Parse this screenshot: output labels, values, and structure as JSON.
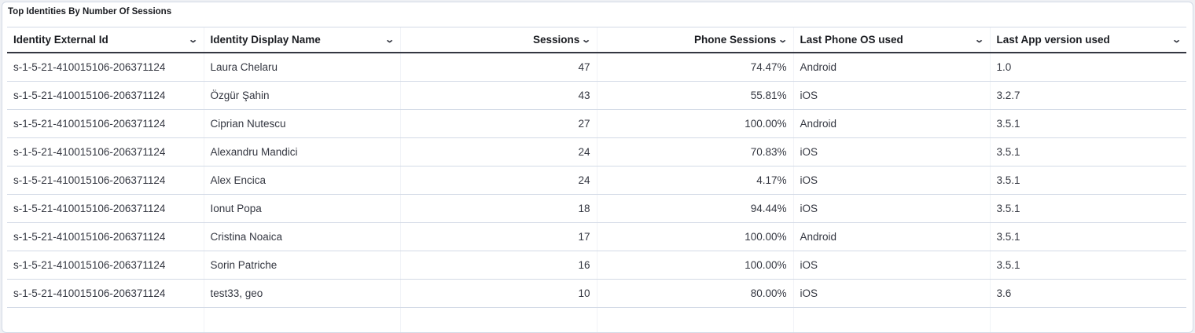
{
  "title": "Top Identities By Number Of Sessions",
  "columns": [
    {
      "label": "Identity External Id",
      "align": "left"
    },
    {
      "label": "Identity Display Name",
      "align": "left"
    },
    {
      "label": "Sessions",
      "align": "right"
    },
    {
      "label": "Phone Sessions",
      "align": "right"
    },
    {
      "label": "Last Phone OS used",
      "align": "left"
    },
    {
      "label": "Last App version used",
      "align": "left"
    }
  ],
  "rows": [
    [
      "s-1-5-21-410015106-206371124",
      "Laura Chelaru",
      "47",
      "74.47%",
      "Android",
      "1.0"
    ],
    [
      "s-1-5-21-410015106-206371124",
      "Özgür Şahin",
      "43",
      "55.81%",
      "iOS",
      "3.2.7"
    ],
    [
      "s-1-5-21-410015106-206371124",
      "Ciprian Nutescu",
      "27",
      "100.00%",
      "Android",
      "3.5.1"
    ],
    [
      "s-1-5-21-410015106-206371124",
      "Alexandru Mandici",
      "24",
      "70.83%",
      "iOS",
      "3.5.1"
    ],
    [
      "s-1-5-21-410015106-206371124",
      "Alex Encica",
      "24",
      "4.17%",
      "iOS",
      "3.5.1"
    ],
    [
      "s-1-5-21-410015106-206371124",
      "Ionut Popa",
      "18",
      "94.44%",
      "iOS",
      "3.5.1"
    ],
    [
      "s-1-5-21-410015106-206371124",
      "Cristina Noaica",
      "17",
      "100.00%",
      "Android",
      "3.5.1"
    ],
    [
      "s-1-5-21-410015106-206371124",
      "Sorin Patriche",
      "16",
      "100.00%",
      "iOS",
      "3.5.1"
    ],
    [
      "s-1-5-21-410015106-206371124",
      "test33, geo",
      "10",
      "80.00%",
      "iOS",
      "3.6"
    ]
  ]
}
